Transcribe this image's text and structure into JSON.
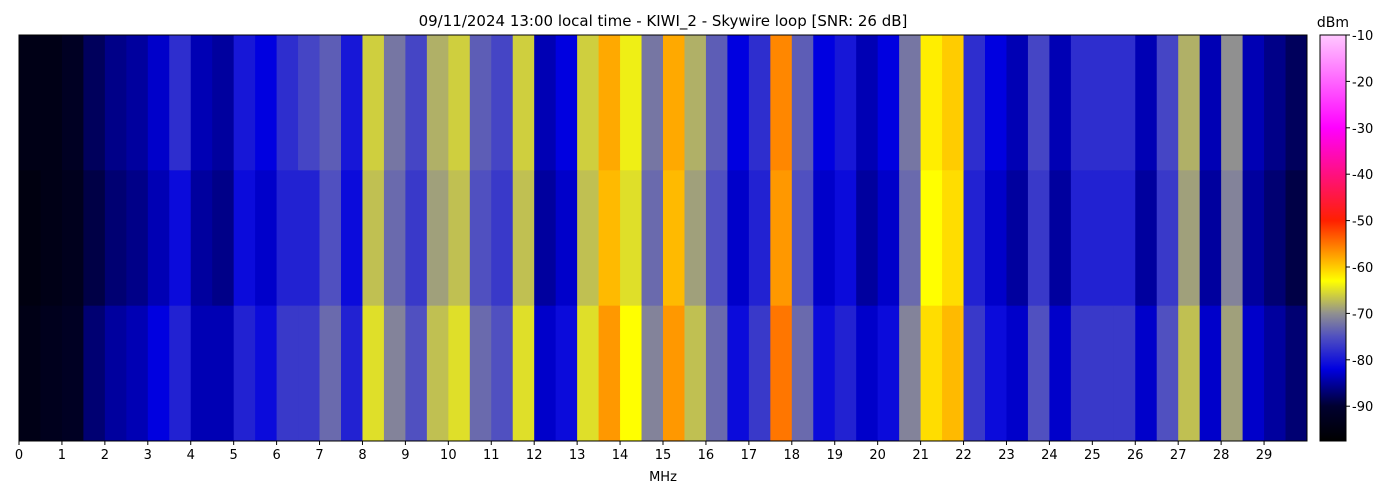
{
  "chart_data": {
    "type": "heatmap",
    "title": "09/11/2024 13:00 local time - KIWI_2 - Skywire loop [SNR: 26 dB]",
    "x_label": "MHz",
    "colorbar_label": "dBm",
    "xlim": [
      0,
      30
    ],
    "xticks": [
      0,
      1,
      2,
      3,
      4,
      5,
      6,
      7,
      8,
      9,
      10,
      11,
      12,
      13,
      14,
      15,
      16,
      17,
      18,
      19,
      20,
      21,
      22,
      23,
      24,
      25,
      26,
      27,
      28,
      29
    ],
    "xbins": [
      0,
      0.5,
      1,
      1.5,
      2,
      2.5,
      3,
      3.5,
      4,
      4.5,
      5,
      5.5,
      6,
      6.5,
      7,
      7.5,
      8,
      8.5,
      9,
      9.5,
      10,
      10.5,
      11,
      11.5,
      12,
      12.5,
      13,
      13.5,
      14,
      14.5,
      15,
      15.5,
      16,
      16.5,
      17,
      17.5,
      18,
      18.5,
      19,
      19.5,
      20,
      20.5,
      21,
      21.5,
      22,
      22.5,
      23,
      23.5,
      24,
      24.5,
      25,
      25.5,
      26,
      26.5,
      27,
      27.5,
      28,
      28.5,
      29,
      29.5,
      30
    ],
    "z": [
      [
        -94,
        -94,
        -92,
        -88,
        -86,
        -85,
        -83,
        -78,
        -84,
        -85,
        -80,
        -82,
        -78,
        -76,
        -74,
        -80,
        -66,
        -72,
        -76,
        -68,
        -66,
        -74,
        -76,
        -66,
        -84,
        -82,
        -66,
        -58,
        -64,
        -72,
        -58,
        -68,
        -74,
        -82,
        -78,
        -56,
        -74,
        -82,
        -80,
        -84,
        -82,
        -72,
        -62,
        -60,
        -78,
        -82,
        -84,
        -76,
        -84,
        -78,
        -78,
        -78,
        -84,
        -76,
        -68,
        -84,
        -70,
        -84,
        -86,
        -88
      ],
      [
        -95,
        -94,
        -93,
        -89,
        -87,
        -86,
        -84,
        -81,
        -85,
        -86,
        -81,
        -83,
        -79,
        -79,
        -75,
        -81,
        -67,
        -73,
        -77,
        -69,
        -67,
        -75,
        -77,
        -67,
        -85,
        -83,
        -67,
        -59,
        -65,
        -73,
        -59,
        -69,
        -75,
        -83,
        -79,
        -57,
        -75,
        -83,
        -81,
        -85,
        -83,
        -73,
        -63,
        -61,
        -79,
        -83,
        -85,
        -77,
        -85,
        -79,
        -79,
        -79,
        -85,
        -77,
        -69,
        -85,
        -71,
        -85,
        -87,
        -89
      ],
      [
        -94,
        -93,
        -92,
        -87,
        -85,
        -84,
        -82,
        -79,
        -84,
        -84,
        -79,
        -81,
        -77,
        -77,
        -73,
        -79,
        -65,
        -71,
        -75,
        -67,
        -65,
        -73,
        -75,
        -65,
        -83,
        -81,
        -65,
        -57,
        -63,
        -71,
        -57,
        -67,
        -73,
        -81,
        -77,
        -55,
        -73,
        -81,
        -79,
        -83,
        -81,
        -71,
        -61,
        -59,
        -77,
        -81,
        -83,
        -75,
        -83,
        -77,
        -77,
        -77,
        -83,
        -75,
        -67,
        -83,
        -69,
        -83,
        -85,
        -87
      ]
    ],
    "clim": [
      -97.5,
      -10
    ],
    "colorbar_ticks": [
      -10,
      -20,
      -30,
      -40,
      -50,
      -60,
      -70,
      -80,
      -90
    ],
    "colorscale": [
      [
        -97.5,
        "#000000"
      ],
      [
        -90,
        "#000030"
      ],
      [
        -82,
        "#0000e0"
      ],
      [
        -75,
        "#5050c0"
      ],
      [
        -70,
        "#909090"
      ],
      [
        -63,
        "#ffff00"
      ],
      [
        -50,
        "#ff2000"
      ],
      [
        -30,
        "#ff00ff"
      ],
      [
        -10,
        "#ffc8ff"
      ]
    ]
  }
}
